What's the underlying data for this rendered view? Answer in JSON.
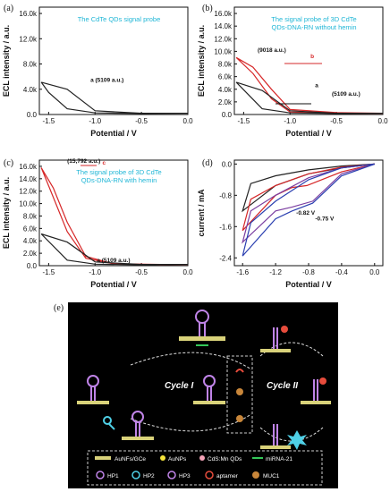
{
  "chart_data": [
    {
      "panel": "(a)",
      "type": "line",
      "title": "The CdTe QDs signal probe",
      "xlabel": "Potential / V",
      "ylabel": "ECL intensity / a.u.",
      "xlim": [
        -1.6,
        0.0
      ],
      "ylim": [
        0,
        17000
      ],
      "xticks": [
        "-1.5",
        "-1.0",
        "-0.5",
        "0.0"
      ],
      "yticks": [
        "0.0",
        "4.0k",
        "8.0k",
        "12.0k",
        "16.0k"
      ],
      "series": [
        {
          "name": "a",
          "color": "#222222",
          "x": [
            -1.58,
            -1.3,
            -1.0,
            -0.5,
            0.0,
            -0.5,
            -1.0,
            -1.3,
            -1.5,
            -1.58
          ],
          "y": [
            5109,
            4000,
            600,
            200,
            200,
            150,
            250,
            900,
            3500,
            5109
          ]
        }
      ],
      "annotations": [
        "a (5109 a.u.)"
      ]
    },
    {
      "panel": "(b)",
      "type": "line",
      "title": "The signal probe of 3D CdTe QDs-DNA-RN without hemin",
      "xlabel": "Potential / V",
      "ylabel": "ECL intensity / a.u.",
      "xlim": [
        -1.6,
        0.0
      ],
      "ylim": [
        0,
        17000
      ],
      "xticks": [
        "-1.5",
        "-1.0",
        "-0.5",
        "0.0"
      ],
      "yticks": [
        "0.0",
        "2.0k",
        "4.0k",
        "6.0k",
        "8.0k",
        "10.0k",
        "12.0k",
        "14.0k",
        "16.0k"
      ],
      "series": [
        {
          "name": "b",
          "color": "#d62728",
          "x": [
            -1.58,
            -1.4,
            -1.2,
            -1.0,
            -0.5,
            0.0,
            -0.5,
            -1.0,
            -1.2,
            -1.4,
            -1.58
          ],
          "y": [
            9018,
            7500,
            4000,
            800,
            300,
            200,
            150,
            400,
            2500,
            6500,
            9018
          ]
        },
        {
          "name": "a",
          "color": "#222222",
          "x": [
            -1.58,
            -1.3,
            -1.0,
            -0.5,
            0.0,
            -0.5,
            -1.0,
            -1.3,
            -1.58
          ],
          "y": [
            5109,
            3800,
            600,
            200,
            200,
            150,
            250,
            900,
            5109
          ]
        }
      ],
      "annotations": [
        "(9018 a.u.)",
        "b",
        "a",
        "(5109 a.u.)"
      ]
    },
    {
      "panel": "(c)",
      "type": "line",
      "title": "The signal probe of 3D CdTe QDs-DNA-RN with hemin",
      "xlabel": "Potential / V",
      "ylabel": "ECL intensity / a.u.",
      "xlim": [
        -1.6,
        0.0
      ],
      "ylim": [
        0,
        17000
      ],
      "xticks": [
        "-1.5",
        "-1.0",
        "-0.5",
        "0.0"
      ],
      "yticks": [
        "0.0",
        "2.0k",
        "4.0k",
        "6.0k",
        "8.0k",
        "10.0k",
        "12.0k",
        "14.0k",
        "16.0k"
      ],
      "series": [
        {
          "name": "c",
          "color": "#d62728",
          "x": [
            -1.58,
            -1.45,
            -1.3,
            -1.1,
            -0.8,
            -0.3,
            0.0,
            -0.3,
            -0.8,
            -1.1,
            -1.3,
            -1.45,
            -1.58
          ],
          "y": [
            15792,
            12500,
            7000,
            1500,
            300,
            200,
            200,
            150,
            300,
            1200,
            5500,
            11000,
            15792
          ]
        },
        {
          "name": "a",
          "color": "#222222",
          "x": [
            -1.58,
            -1.3,
            -1.0,
            -0.5,
            0.0,
            -0.5,
            -1.0,
            -1.3,
            -1.58
          ],
          "y": [
            5109,
            3800,
            600,
            200,
            200,
            150,
            250,
            900,
            5109
          ]
        }
      ],
      "annotations": [
        "(15,792 a.u.)",
        "c",
        "a (5109 a.u.)"
      ]
    },
    {
      "panel": "(d)",
      "type": "line",
      "xlabel": "Potential / V",
      "ylabel": "current / mA",
      "xlim": [
        -1.7,
        0.1
      ],
      "ylim": [
        -2.6,
        0.1
      ],
      "xticks": [
        "-1.6",
        "-1.2",
        "-0.8",
        "-0.4",
        "0.0"
      ],
      "yticks": [
        "0.0",
        "-0.8",
        "-1.6",
        "-2.4"
      ],
      "series": [
        {
          "color": "#222222",
          "x": [
            0.0,
            -0.4,
            -0.8,
            -1.2,
            -1.6,
            -1.5,
            -1.2,
            -0.8,
            -0.4,
            0.0
          ],
          "y": [
            0.0,
            -0.1,
            -0.25,
            -0.55,
            -1.2,
            -0.5,
            -0.3,
            -0.15,
            -0.05,
            0.0
          ]
        },
        {
          "color": "#d62728",
          "x": [
            0.0,
            -0.4,
            -0.82,
            -1.0,
            -1.2,
            -1.6,
            -1.5,
            -1.2,
            -0.8,
            -0.4,
            0.0
          ],
          "y": [
            0.0,
            -0.2,
            -0.55,
            -0.6,
            -0.8,
            -1.7,
            -0.9,
            -0.55,
            -0.25,
            -0.08,
            0.0
          ]
        },
        {
          "color": "#7b3fa1",
          "x": [
            0.0,
            -0.4,
            -0.75,
            -1.0,
            -1.2,
            -1.6,
            -1.5,
            -1.2,
            -0.8,
            -0.4,
            0.0
          ],
          "y": [
            0.0,
            -0.25,
            -0.95,
            -1.1,
            -1.2,
            -2.0,
            -1.2,
            -0.8,
            -0.35,
            -0.1,
            0.0
          ]
        },
        {
          "color": "#2a3fb0",
          "x": [
            0.0,
            -0.4,
            -0.75,
            -1.0,
            -1.2,
            -1.6,
            -1.5,
            -1.2,
            -0.8,
            -0.4,
            0.0
          ],
          "y": [
            0.0,
            -0.3,
            -1.0,
            -1.2,
            -1.4,
            -2.35,
            -1.5,
            -0.95,
            -0.4,
            -0.1,
            0.0
          ]
        }
      ],
      "annotations": [
        "-0.82 V",
        "-0.75 V"
      ]
    }
  ],
  "panels": {
    "a": "(a)",
    "b": "(b)",
    "c": "(c)",
    "d": "(d)",
    "e": "(e)"
  },
  "scheme": {
    "cycle1": "Cycle I",
    "cycle2": "Cycle II",
    "legend": [
      "AuNFs/GCe",
      "AuNPs",
      "CdS:Mn QDs",
      "miRNA-21",
      "HP1",
      "HP2",
      "HP3",
      "aptamer",
      "MUC1"
    ]
  }
}
